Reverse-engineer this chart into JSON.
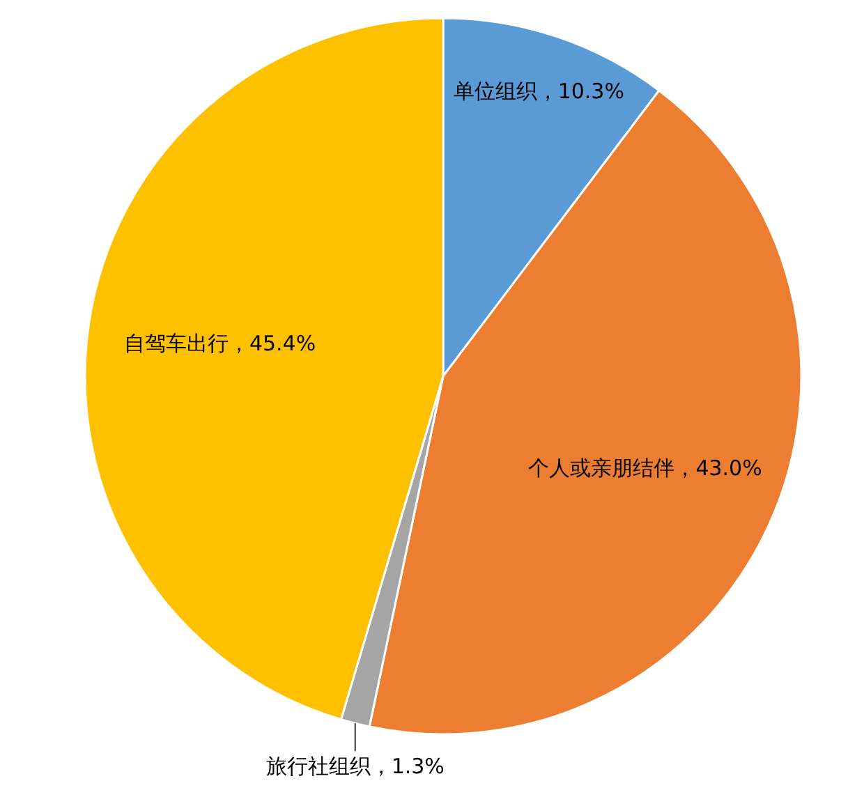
{
  "chart_data": {
    "type": "pie",
    "categories": [
      "单位组织",
      "个人或亲朋结伴",
      "旅行社组织",
      "自驾车出行"
    ],
    "values": [
      10.3,
      43.0,
      1.3,
      45.4
    ],
    "value_labels": [
      "10.3%",
      "43.0%",
      "1.3%",
      "45.4%"
    ],
    "colors": [
      "#5b9bd5",
      "#ed7d31",
      "#a5a5a5",
      "#ffc000"
    ],
    "legend": false
  }
}
